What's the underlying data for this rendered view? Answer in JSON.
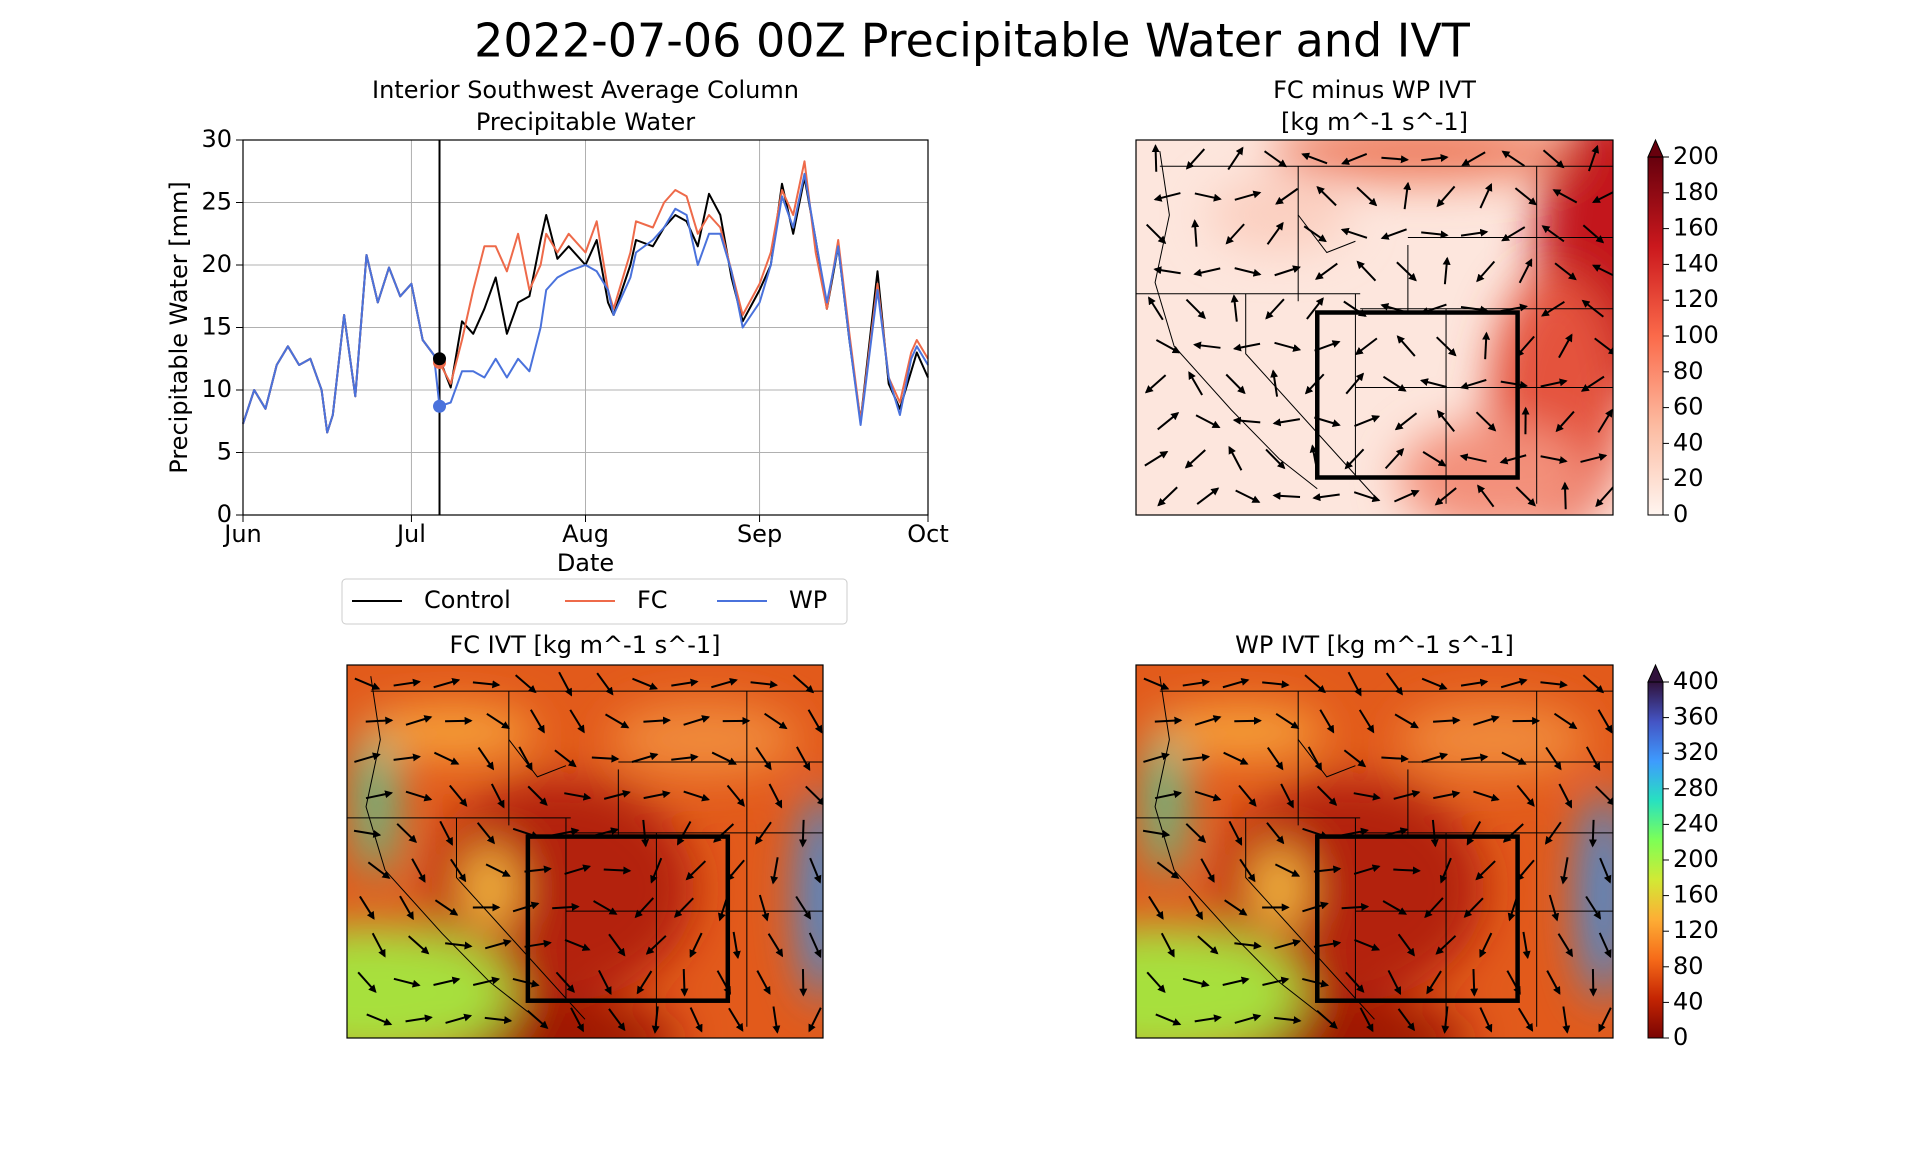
{
  "title": "2022-07-06 00Z Precipitable Water and IVT",
  "chart_data": [
    {
      "type": "line",
      "title": [
        "Interior Southwest Average Column",
        "Precipitable Water"
      ],
      "xlabel": "Date",
      "ylabel": "Precipitable Water [mm]",
      "x": [
        0,
        2,
        4,
        6,
        8,
        10,
        12,
        14,
        15,
        16,
        18,
        20,
        22,
        24,
        26,
        28,
        30,
        32,
        34,
        35,
        37,
        39,
        41,
        43,
        45,
        47,
        49,
        51,
        53,
        54,
        56,
        58,
        61,
        63,
        65,
        66,
        69,
        70,
        73,
        75,
        77,
        79,
        81,
        83,
        85,
        87,
        89,
        92,
        94,
        96,
        98,
        100,
        102,
        104,
        106,
        108,
        110,
        113,
        115,
        117,
        119,
        120,
        122
      ],
      "xlim": [
        0,
        122
      ],
      "xticks": [
        {
          "value": 0,
          "label": "Jun"
        },
        {
          "value": 30,
          "label": "Jul"
        },
        {
          "value": 61,
          "label": "Aug"
        },
        {
          "value": 92,
          "label": "Sep"
        },
        {
          "value": 122,
          "label": "Oct"
        }
      ],
      "ylim": [
        0,
        30
      ],
      "yticks": [
        0,
        5,
        10,
        15,
        20,
        25,
        30
      ],
      "grid": true,
      "vline": 35,
      "legend": "bottom",
      "series": [
        {
          "name": "Control",
          "color": "#000000",
          "values": [
            7.3,
            10,
            8.5,
            12,
            13.5,
            12,
            12.5,
            10,
            6.6,
            8,
            16,
            9.5,
            20.8,
            17,
            19.8,
            17.5,
            18.5,
            14,
            12.8,
            12.5,
            10.2,
            15.5,
            14.5,
            16.5,
            19,
            14.5,
            17,
            17.5,
            22,
            24,
            20.5,
            21.5,
            20,
            22,
            17,
            16,
            20,
            22,
            21.5,
            23,
            24,
            23.5,
            21.5,
            25.7,
            24,
            19,
            15.5,
            18,
            20,
            26.5,
            22.5,
            27,
            22,
            16.5,
            21.5,
            14,
            7.5,
            19.5,
            10.5,
            8.5,
            11.5,
            13,
            11
          ]
        },
        {
          "name": "FC",
          "color": "#ee6a4a",
          "values": [
            7.3,
            10,
            8.5,
            12,
            13.5,
            12,
            12.5,
            10,
            6.6,
            8,
            16,
            9.5,
            20.8,
            17,
            19.8,
            17.5,
            18.5,
            14,
            12.8,
            12.2,
            10.5,
            14,
            18,
            21.5,
            21.5,
            19.5,
            22.5,
            18,
            20,
            22.5,
            21,
            22.5,
            21,
            23.5,
            18,
            16.5,
            21,
            23.5,
            23,
            25,
            26,
            25.5,
            22.5,
            24,
            23,
            19.5,
            16,
            18.5,
            21,
            26,
            24,
            28.3,
            21,
            16.5,
            22,
            14.5,
            7.5,
            18.5,
            11,
            9,
            13,
            14,
            12.5
          ]
        },
        {
          "name": "WP",
          "color": "#4a72dc",
          "values": [
            7.3,
            10,
            8.5,
            12,
            13.5,
            12,
            12.5,
            10,
            6.6,
            8,
            16,
            9.5,
            20.8,
            17,
            19.8,
            17.5,
            18.5,
            14,
            12.8,
            8.7,
            9,
            11.5,
            11.5,
            11,
            12.5,
            11,
            12.5,
            11.5,
            15,
            18,
            19,
            19.5,
            20,
            19.5,
            18,
            16,
            19,
            21,
            22,
            23,
            24.5,
            24,
            20,
            22.5,
            22.5,
            19.5,
            15,
            17,
            20,
            25.5,
            23,
            27.3,
            22,
            17,
            21.5,
            14,
            7.2,
            18,
            11,
            8,
            12.5,
            13.5,
            12
          ]
        }
      ]
    },
    {
      "type": "map",
      "title": [
        "FC minus WP IVT",
        "[kg m^-1 s^-1]"
      ],
      "colorbar": {
        "clim": [
          0,
          200
        ],
        "ticks": [
          0,
          20,
          40,
          60,
          80,
          100,
          120,
          140,
          160,
          180,
          200
        ],
        "extend": "max",
        "colors": [
          "#fff5f0",
          "#fcbba1",
          "#fb6a4a",
          "#cb181d",
          "#67000d"
        ]
      }
    },
    {
      "type": "map",
      "title": [
        "FC IVT [kg m^-1 s^-1]"
      ]
    },
    {
      "type": "map",
      "title": [
        "WP IVT [kg m^-1 s^-1]"
      ],
      "colorbar": {
        "clim": [
          0,
          400
        ],
        "ticks": [
          0,
          40,
          80,
          120,
          160,
          200,
          240,
          280,
          320,
          360,
          400
        ],
        "extend": "max",
        "colors": [
          "#7a0403",
          "#c42503",
          "#f66b19",
          "#fdae35",
          "#d2e935",
          "#7dff56",
          "#28e1c0",
          "#3e9bfe",
          "#4454c4",
          "#30123b"
        ]
      }
    }
  ]
}
